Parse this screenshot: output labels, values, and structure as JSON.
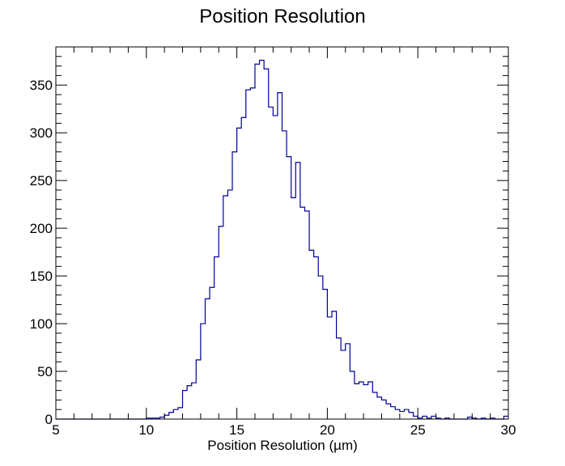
{
  "chart_data": {
    "type": "histogram",
    "title": "Position Resolution",
    "xlabel": "Position Resolution (µm)",
    "ylabel": "",
    "xlim": [
      5,
      30
    ],
    "ylim": [
      0,
      390
    ],
    "grid": false,
    "legend": "none",
    "x_ticks": [
      5,
      10,
      15,
      20,
      25,
      30
    ],
    "x_tick_labels": [
      "5",
      "10",
      "15",
      "20",
      "25",
      "30"
    ],
    "y_ticks": [
      0,
      50,
      100,
      150,
      200,
      250,
      300,
      350
    ],
    "y_tick_labels": [
      "0",
      "50",
      "100",
      "150",
      "200",
      "250",
      "300",
      "350"
    ],
    "line_color": "#000099",
    "bin_start": 5,
    "bin_width": 0.25,
    "counts": [
      0,
      0,
      0,
      0,
      0,
      0,
      0,
      0,
      0,
      0,
      0,
      0,
      0,
      0,
      0,
      0,
      0,
      0,
      0,
      0,
      1,
      1,
      1,
      2,
      4,
      7,
      10,
      12,
      30,
      35,
      38,
      62,
      100,
      126,
      138,
      170,
      202,
      234,
      240,
      280,
      305,
      316,
      345,
      347,
      372,
      376,
      367,
      327,
      318,
      342,
      302,
      275,
      232,
      269,
      222,
      218,
      177,
      170,
      150,
      136,
      107,
      113,
      85,
      72,
      79,
      50,
      37,
      39,
      36,
      39,
      28,
      23,
      20,
      16,
      13,
      10,
      8,
      10,
      7,
      3,
      1,
      3,
      1,
      3,
      1,
      0,
      1,
      0,
      0,
      0,
      0,
      2,
      1,
      0,
      1,
      0,
      1,
      0,
      0,
      3
    ]
  }
}
